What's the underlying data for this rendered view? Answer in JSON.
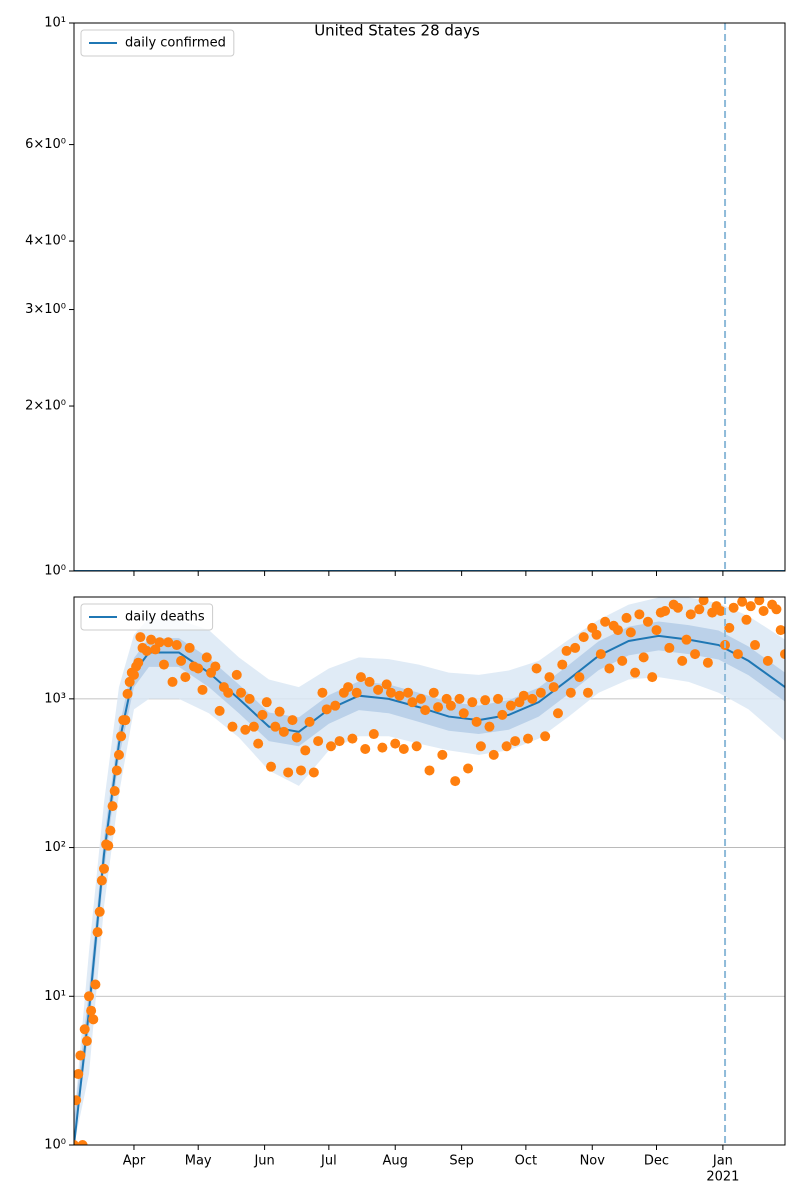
{
  "chart_data": [
    {
      "type": "line",
      "title": "United States 28 days",
      "series": [
        {
          "name": "daily confirmed",
          "color": "#1f77b4",
          "x": [
            0,
            332
          ],
          "values": [
            1,
            1
          ]
        }
      ],
      "xlim": [
        0,
        332
      ],
      "xticks": [
        28,
        58,
        89,
        119,
        150,
        181,
        211,
        242,
        272,
        303
      ],
      "show_xtick_labels": false,
      "ylim": [
        1,
        10
      ],
      "log_y": true,
      "grid": false,
      "legend": "upper left",
      "yticks": [
        {
          "value": 1,
          "label": "10⁰"
        },
        {
          "value": 2,
          "label": "2×10⁰"
        },
        {
          "value": 3,
          "label": "3×10⁰"
        },
        {
          "value": 4,
          "label": "4×10⁰"
        },
        {
          "value": 6,
          "label": "6×10⁰"
        },
        {
          "value": 10,
          "label": "10¹"
        }
      ],
      "vline": 304,
      "vline_color": "#8fbbd9"
    },
    {
      "type": "line",
      "series": [
        {
          "name": "daily deaths",
          "color": "#1f77b4",
          "x": [
            0,
            7,
            14,
            21,
            28,
            35,
            49,
            63,
            77,
            91,
            105,
            119,
            133,
            147,
            161,
            175,
            189,
            203,
            217,
            231,
            245,
            259,
            273,
            287,
            301,
            315,
            332
          ],
          "values": [
            1,
            8,
            90,
            500,
            1500,
            2050,
            2050,
            1500,
            1000,
            650,
            600,
            850,
            1050,
            1000,
            880,
            760,
            720,
            780,
            950,
            1350,
            1950,
            2450,
            2650,
            2500,
            2300,
            1800,
            1200
          ]
        }
      ],
      "bands": [
        {
          "color": "#dbe8f5",
          "x": [
            0,
            7,
            14,
            21,
            28,
            35,
            49,
            63,
            77,
            91,
            105,
            119,
            133,
            147,
            161,
            175,
            189,
            203,
            217,
            231,
            245,
            259,
            273,
            287,
            301,
            315,
            332
          ],
          "lower": [
            1,
            3,
            40,
            230,
            850,
            1000,
            1000,
            800,
            550,
            330,
            260,
            450,
            560,
            560,
            500,
            450,
            420,
            450,
            540,
            760,
            1100,
            1350,
            1400,
            1300,
            1100,
            850,
            520
          ],
          "upper": [
            1.5,
            20,
            200,
            1200,
            2700,
            3500,
            3400,
            2900,
            1900,
            1350,
            1200,
            1600,
            1900,
            1850,
            1700,
            1500,
            1450,
            1550,
            1800,
            2500,
            3400,
            4300,
            4800,
            4800,
            4400,
            3600,
            2500
          ]
        },
        {
          "color": "#b4cde6",
          "x": [
            0,
            7,
            14,
            21,
            28,
            35,
            49,
            63,
            77,
            91,
            105,
            119,
            133,
            147,
            161,
            175,
            189,
            203,
            217,
            231,
            245,
            259,
            273,
            287,
            301,
            315,
            332
          ],
          "lower": [
            1,
            6,
            70,
            400,
            1200,
            1640,
            1640,
            1200,
            800,
            520,
            480,
            680,
            840,
            800,
            700,
            610,
            580,
            620,
            760,
            1080,
            1560,
            1960,
            2120,
            2000,
            1840,
            1440,
            960
          ],
          "upper": [
            1.5,
            11,
            115,
            630,
            1880,
            2560,
            2560,
            1880,
            1250,
            810,
            750,
            1060,
            1310,
            1250,
            1100,
            950,
            900,
            980,
            1190,
            1690,
            2440,
            3060,
            3310,
            3130,
            2880,
            2250,
            1500
          ]
        }
      ],
      "scatter": {
        "color": "#ff7f0e",
        "x": [
          0,
          1,
          2,
          3,
          4,
          5,
          6,
          7,
          8,
          9,
          10,
          11,
          12,
          13,
          14,
          15,
          16,
          17,
          18,
          19,
          20,
          21,
          22,
          23,
          24,
          25,
          26,
          27,
          28,
          29,
          30,
          31,
          32,
          34,
          36,
          38,
          40,
          42,
          44,
          46,
          48,
          50,
          52,
          54,
          56,
          58,
          60,
          62,
          64,
          66,
          68,
          70,
          72,
          74,
          76,
          78,
          80,
          82,
          84,
          86,
          88,
          90,
          92,
          94,
          96,
          98,
          100,
          102,
          104,
          106,
          108,
          110,
          112,
          114,
          116,
          118,
          120,
          122,
          124,
          126,
          128,
          130,
          132,
          134,
          136,
          138,
          140,
          142,
          144,
          146,
          148,
          150,
          152,
          154,
          156,
          158,
          160,
          162,
          164,
          166,
          168,
          170,
          172,
          174,
          176,
          178,
          180,
          182,
          184,
          186,
          188,
          190,
          192,
          194,
          196,
          198,
          200,
          202,
          204,
          206,
          208,
          210,
          212,
          214,
          216,
          218,
          220,
          222,
          224,
          226,
          228,
          230,
          232,
          234,
          236,
          238,
          240,
          242,
          244,
          246,
          248,
          250,
          252,
          254,
          256,
          258,
          260,
          262,
          264,
          266,
          268,
          270,
          272,
          274,
          276,
          278,
          280,
          282,
          284,
          286,
          288,
          290,
          292,
          294,
          296,
          298,
          300,
          302,
          304,
          306,
          308,
          310,
          312,
          314,
          316,
          318,
          320,
          322,
          324,
          326,
          328,
          330,
          332
        ],
        "values": [
          1,
          2,
          3,
          4,
          1,
          6,
          5,
          10,
          8,
          7,
          12,
          27,
          37,
          60,
          72,
          105,
          103,
          130,
          190,
          240,
          330,
          420,
          560,
          720,
          720,
          1080,
          1300,
          1500,
          1450,
          1650,
          1750,
          2600,
          2200,
          2100,
          2500,
          2150,
          2400,
          1700,
          2400,
          1300,
          2300,
          1800,
          1400,
          2200,
          1650,
          1600,
          1150,
          1900,
          1500,
          1650,
          830,
          1200,
          1100,
          650,
          1450,
          1100,
          620,
          1000,
          650,
          500,
          780,
          950,
          350,
          650,
          820,
          600,
          320,
          720,
          550,
          330,
          450,
          700,
          320,
          520,
          1100,
          850,
          480,
          900,
          520,
          1100,
          1200,
          540,
          1100,
          1400,
          460,
          1300,
          580,
          1150,
          470,
          1250,
          1100,
          500,
          1050,
          460,
          1100,
          950,
          480,
          1000,
          840,
          330,
          1100,
          880,
          420,
          1000,
          900,
          280,
          1000,
          800,
          340,
          950,
          700,
          480,
          980,
          650,
          420,
          1000,
          780,
          480,
          900,
          520,
          950,
          1050,
          540,
          1000,
          1600,
          1100,
          560,
          1400,
          1200,
          800,
          1700,
          2100,
          1100,
          2200,
          1400,
          2600,
          1100,
          3000,
          2700,
          2000,
          3300,
          1600,
          3100,
          2900,
          1800,
          3500,
          2800,
          1500,
          3700,
          1900,
          3300,
          1400,
          2900,
          3800,
          3900,
          2200,
          4300,
          4100,
          1800,
          2500,
          3700,
          2000,
          4000,
          4600,
          1750,
          3800,
          4200,
          3900,
          2300,
          3000,
          4100,
          2000,
          4500,
          3400,
          4200,
          2300,
          4600,
          3900,
          1800,
          4300,
          4000,
          2900,
          2000
        ]
      },
      "xlim": [
        0,
        332
      ],
      "show_xtick_labels": true,
      "xticks": [
        {
          "value": 28,
          "label": "Apr"
        },
        {
          "value": 58,
          "label": "May"
        },
        {
          "value": 89,
          "label": "Jun"
        },
        {
          "value": 119,
          "label": "Jul"
        },
        {
          "value": 150,
          "label": "Aug"
        },
        {
          "value": 181,
          "label": "Sep"
        },
        {
          "value": 211,
          "label": "Oct"
        },
        {
          "value": 242,
          "label": "Nov"
        },
        {
          "value": 272,
          "label": "Dec"
        },
        {
          "value": 303,
          "label": "Jan"
        }
      ],
      "year_label": "2021",
      "year_tick": 9,
      "ylim": [
        1,
        4840
      ],
      "log_y": true,
      "grid": true,
      "legend": "upper left",
      "yticks": [
        {
          "value": 1,
          "label": "10⁰"
        },
        {
          "value": 10,
          "label": "10¹"
        },
        {
          "value": 100,
          "label": "10²"
        },
        {
          "value": 1000,
          "label": "10³"
        }
      ],
      "vline": 304,
      "vline_color": "#8fbbd9"
    }
  ]
}
